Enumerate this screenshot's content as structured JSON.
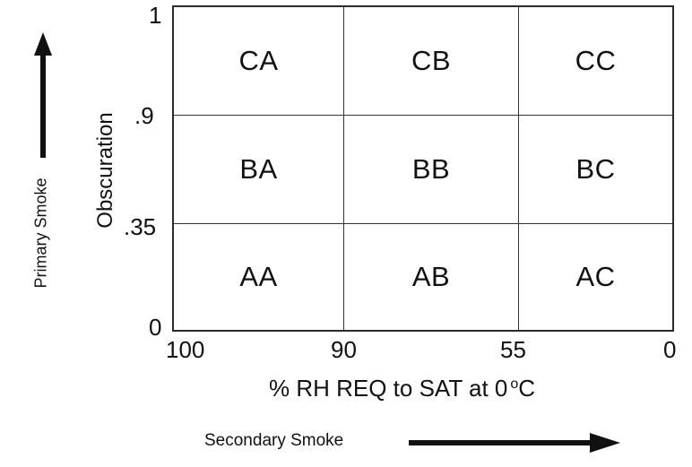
{
  "diagram": {
    "cells": [
      [
        "CA",
        "CB",
        "CC"
      ],
      [
        "BA",
        "BB",
        "BC"
      ],
      [
        "AA",
        "AB",
        "AC"
      ]
    ],
    "y_ticks": {
      "top": "1",
      "upper": ".9",
      "lower": ".35",
      "bottom": "0"
    },
    "x_ticks": {
      "left": "100",
      "mid_left": "90",
      "mid_right": "55",
      "right": "0"
    },
    "y_axis_label": "Obscuration",
    "x_axis_label": "% RH REQ to SAT at 0",
    "x_axis_label_sup": "o",
    "x_axis_label_unit": "C",
    "primary_label": "Primary Smoke",
    "secondary_label": "Secondary Smoke",
    "colors": {
      "ink": "#111111",
      "grid_lines": "#2a2a2a",
      "background": "#ffffff"
    },
    "icons": {
      "primary_arrow": "arrow-up-icon",
      "secondary_arrow": "arrow-right-icon"
    }
  }
}
